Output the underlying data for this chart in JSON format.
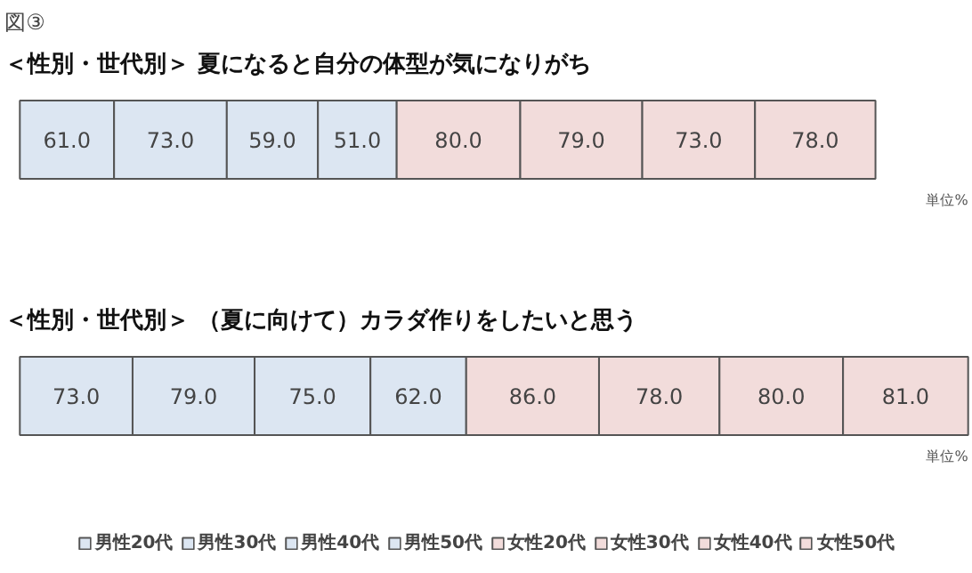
{
  "chart_data": {
    "type": "bar",
    "title": "図③",
    "categories": [
      "＜性別・世代別＞ 夏になると自分の体型が気になりがち",
      "＜性別・世代別＞ （夏に向けて）カラダ作りをしたいと思う"
    ],
    "orientation": "horizontal",
    "stacked": true,
    "annotations": [
      "単位%",
      "単位%"
    ],
    "legend": "bottom",
    "series": [
      {
        "name": "男性20代",
        "color": "#dce6f2",
        "values": [
          61.0,
          73.0
        ],
        "value_labels": [
          "61.0",
          "73.0"
        ]
      },
      {
        "name": "男性30代",
        "color": "#dce6f2",
        "values": [
          73.0,
          79.0
        ],
        "value_labels": [
          "73.0",
          "79.0"
        ]
      },
      {
        "name": "男性40代",
        "color": "#dce6f2",
        "values": [
          59.0,
          75.0
        ],
        "value_labels": [
          "59.0",
          "75.0"
        ]
      },
      {
        "name": "男性50代",
        "color": "#dce6f2",
        "values": [
          51.0,
          62.0
        ],
        "value_labels": [
          "51.0",
          "62.0"
        ]
      },
      {
        "name": "女性20代",
        "color": "#f2dcdb",
        "values": [
          80.0,
          86.0
        ],
        "value_labels": [
          "80.0",
          "86.0"
        ]
      },
      {
        "name": "女性30代",
        "color": "#f2dcdb",
        "values": [
          79.0,
          78.0
        ],
        "value_labels": [
          "79.0",
          "78.0"
        ]
      },
      {
        "name": "女性40代",
        "color": "#f2dcdb",
        "values": [
          73.0,
          80.0
        ],
        "value_labels": [
          "73.0",
          "80.0"
        ]
      },
      {
        "name": "女性50代",
        "color": "#f2dcdb",
        "values": [
          78.0,
          81.0
        ],
        "value_labels": [
          "78.0",
          "81.0"
        ]
      }
    ]
  }
}
